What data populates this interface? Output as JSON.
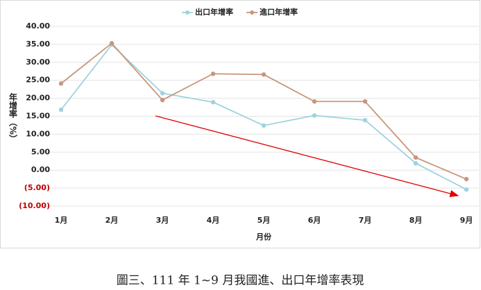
{
  "chart_data": {
    "type": "line",
    "categories": [
      "1月",
      "2月",
      "3月",
      "4月",
      "5月",
      "6月",
      "7月",
      "8月",
      "9月"
    ],
    "series": [
      {
        "name": "出口年增率",
        "color": "#9dd3de",
        "values": [
          16.8,
          34.9,
          21.4,
          18.9,
          12.4,
          15.2,
          13.9,
          1.9,
          -5.4
        ]
      },
      {
        "name": "進口年增率",
        "color": "#c8967a",
        "values": [
          24.1,
          35.3,
          19.5,
          26.8,
          26.6,
          19.1,
          19.1,
          3.5,
          -2.5
        ]
      }
    ],
    "ylim": [
      -10,
      40
    ],
    "yticks": [
      {
        "value": 40,
        "label": "40.00"
      },
      {
        "value": 35,
        "label": "35.00"
      },
      {
        "value": 30,
        "label": "30.00"
      },
      {
        "value": 25,
        "label": "25.00"
      },
      {
        "value": 20,
        "label": "20.00"
      },
      {
        "value": 15,
        "label": "15.00"
      },
      {
        "value": 10,
        "label": "10.00"
      },
      {
        "value": 5,
        "label": "5.00"
      },
      {
        "value": 0,
        "label": "0.00"
      },
      {
        "value": -5,
        "label": "(5.00)"
      },
      {
        "value": -10,
        "label": "(10.00)"
      }
    ],
    "negative_tick_color": "#c00000",
    "xlabel": "月份",
    "ylabel": "年增率（%）",
    "grid": true,
    "legend": "top"
  },
  "caption": "圖三、111 年 1~9 月我國進、出口年增率表現"
}
